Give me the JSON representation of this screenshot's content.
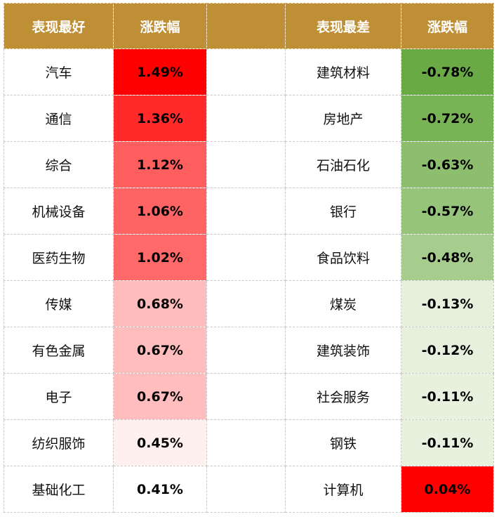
{
  "header": {
    "best_label": "表现最好",
    "best_change_label": "涨跌幅",
    "worst_label": "表现最差",
    "worst_change_label": "涨跌幅"
  },
  "colors": {
    "header_bg": "#bf8f35",
    "up_scale": [
      "#ff0000",
      "#ff2a2a",
      "#ff5e5e",
      "#ff6464",
      "#ff6969",
      "#ffbcbc",
      "#ffbdbd",
      "#ffbdbd",
      "#fff0f0",
      "#ffffff"
    ],
    "down_scale": [
      "#6aaa45",
      "#78b355",
      "#8cbe6d",
      "#97c47b",
      "#a6cd8d",
      "#e6f0dc",
      "#e6f0dc",
      "#e7f1de",
      "#e7f1de",
      "#ff0000"
    ]
  },
  "best": [
    {
      "name": "汽车",
      "change": "1.49%"
    },
    {
      "name": "通信",
      "change": "1.36%"
    },
    {
      "name": "综合",
      "change": "1.12%"
    },
    {
      "name": "机械设备",
      "change": "1.06%"
    },
    {
      "name": "医药生物",
      "change": "1.02%"
    },
    {
      "name": "传媒",
      "change": "0.68%"
    },
    {
      "name": "有色金属",
      "change": "0.67%"
    },
    {
      "name": "电子",
      "change": "0.67%"
    },
    {
      "name": "纺织服饰",
      "change": "0.45%"
    },
    {
      "name": "基础化工",
      "change": "0.41%"
    }
  ],
  "worst": [
    {
      "name": "建筑材料",
      "change": "-0.78%"
    },
    {
      "name": "房地产",
      "change": "-0.72%"
    },
    {
      "name": "石油石化",
      "change": "-0.63%"
    },
    {
      "name": "银行",
      "change": "-0.57%"
    },
    {
      "name": "食品饮料",
      "change": "-0.48%"
    },
    {
      "name": "煤炭",
      "change": "-0.13%"
    },
    {
      "name": "建筑装饰",
      "change": "-0.12%"
    },
    {
      "name": "社会服务",
      "change": "-0.11%"
    },
    {
      "name": "钢铁",
      "change": "-0.11%"
    },
    {
      "name": "计算机",
      "change": "0.04%"
    }
  ]
}
